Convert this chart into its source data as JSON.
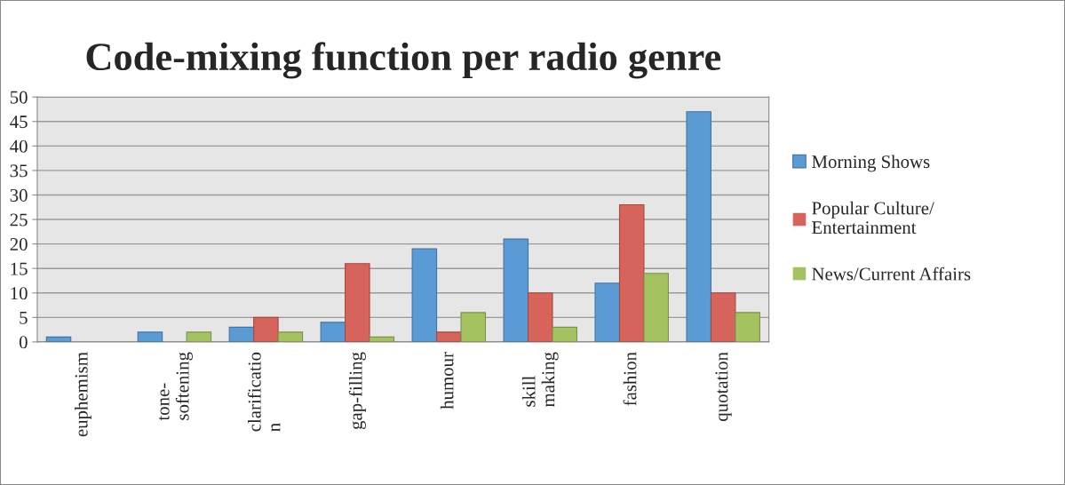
{
  "chart_data": {
    "type": "bar",
    "title": "Code-mixing function per radio genre",
    "categories": [
      "euphemism",
      "tone-\nsoftening",
      "clarificatio\nn",
      "gap-filling",
      "humour",
      "skill\nmaking",
      "fashion",
      "quotation"
    ],
    "series": [
      {
        "name": "Morning Shows",
        "color": "#5b9bd5",
        "values": [
          1,
          2,
          3,
          4,
          19,
          21,
          12,
          47
        ]
      },
      {
        "name": "Popular Culture/\nEntertainment",
        "color": "#d6645a",
        "values": [
          0,
          0,
          5,
          16,
          2,
          10,
          28,
          10
        ]
      },
      {
        "name": "News/Current Affairs",
        "color": "#a5c261",
        "values": [
          0,
          2,
          2,
          1,
          6,
          3,
          14,
          6
        ]
      }
    ],
    "ylim": [
      0,
      50
    ],
    "yticks": [
      0,
      5,
      10,
      15,
      20,
      25,
      30,
      35,
      40,
      45,
      50
    ],
    "grid": "y",
    "legend": "right"
  }
}
